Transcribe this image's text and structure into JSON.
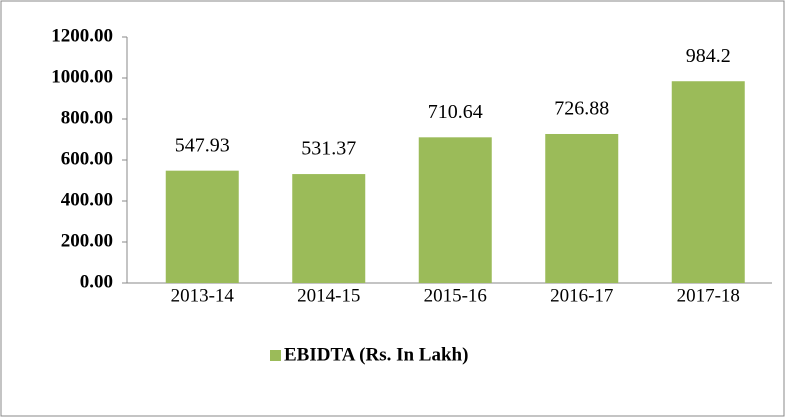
{
  "chart_data": {
    "type": "bar",
    "categories": [
      "2013-14",
      "2014-15",
      "2015-16",
      "2016-17",
      "2017-18"
    ],
    "series": [
      {
        "name": "EBIDTA (Rs. In Lakh)",
        "color": "#9bbb59",
        "values": [
          547.93,
          531.37,
          710.64,
          726.88,
          984.2
        ]
      }
    ],
    "ylim": [
      0,
      1200
    ],
    "yticks": [
      {
        "value": 0,
        "label": "0.00"
      },
      {
        "value": 200,
        "label": "200.00"
      },
      {
        "value": 400,
        "label": "400.00"
      },
      {
        "value": 600,
        "label": "600.00"
      },
      {
        "value": 800,
        "label": "800.00"
      },
      {
        "value": 1000,
        "label": "1000.00"
      },
      {
        "value": 1200,
        "label": "1200.00"
      }
    ],
    "legend": "bottom",
    "grid": false
  }
}
